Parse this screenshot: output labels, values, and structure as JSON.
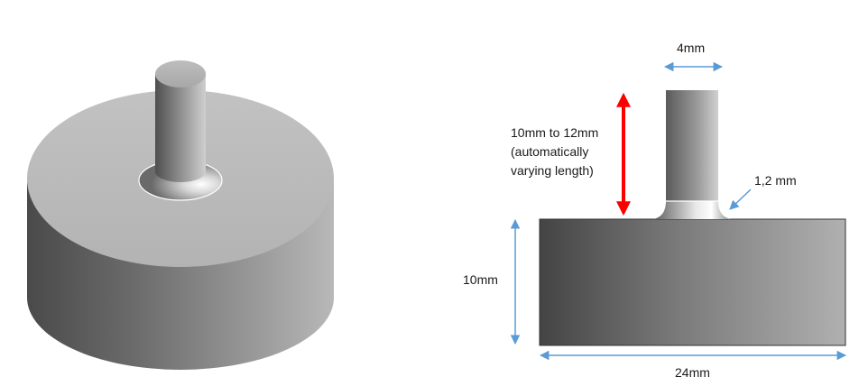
{
  "labels": {
    "pin_width": "4mm",
    "pin_length_line1": "10mm to 12mm",
    "pin_length_line2": "(automatically",
    "pin_length_line3": "varying length)",
    "fillet_radius": "1,2 mm",
    "base_height": "10mm",
    "base_width": "24mm"
  },
  "colors": {
    "dimension_arrow": "#5b9bd5",
    "length_arrow": "#ff0000",
    "outline": "#333333"
  }
}
